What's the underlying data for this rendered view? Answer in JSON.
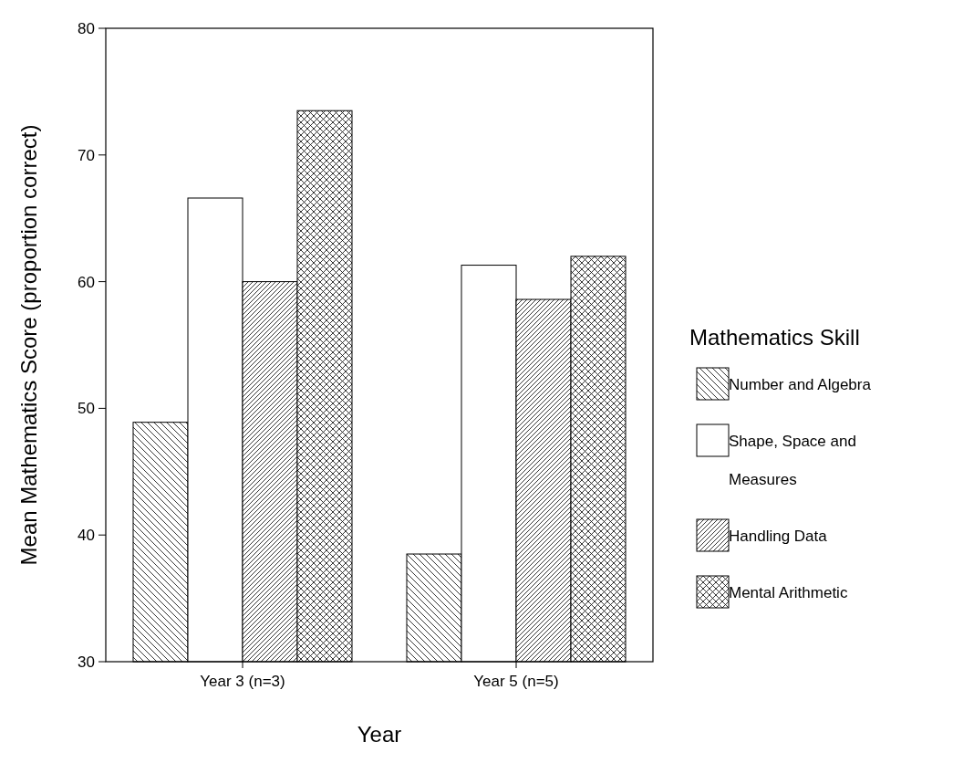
{
  "chart_data": {
    "type": "bar",
    "xlabel": "Year",
    "ylabel": "Mean Mathematics Score (proportion correct)",
    "legend_title": "Mathematics Skill",
    "legend": "right",
    "categories": [
      "Year 3 (n=3)",
      "Year 5 (n=5)"
    ],
    "series": [
      {
        "name": "Number and Algebra",
        "color": "#000000",
        "values": [
          48.9,
          38.5
        ]
      },
      {
        "name": "Shape, Space and Measures",
        "color": "#ffffff",
        "values": [
          66.6,
          61.3
        ]
      },
      {
        "name": "Handling Data",
        "color": "#000000",
        "values": [
          60.0,
          58.6
        ]
      },
      {
        "name": "Mental Arithmetic",
        "color": "#000000",
        "values": [
          73.5,
          62.0
        ]
      }
    ],
    "ylim": [
      30,
      80
    ],
    "yticks": [
      30,
      40,
      50,
      60,
      70,
      80
    ],
    "grid": false
  }
}
